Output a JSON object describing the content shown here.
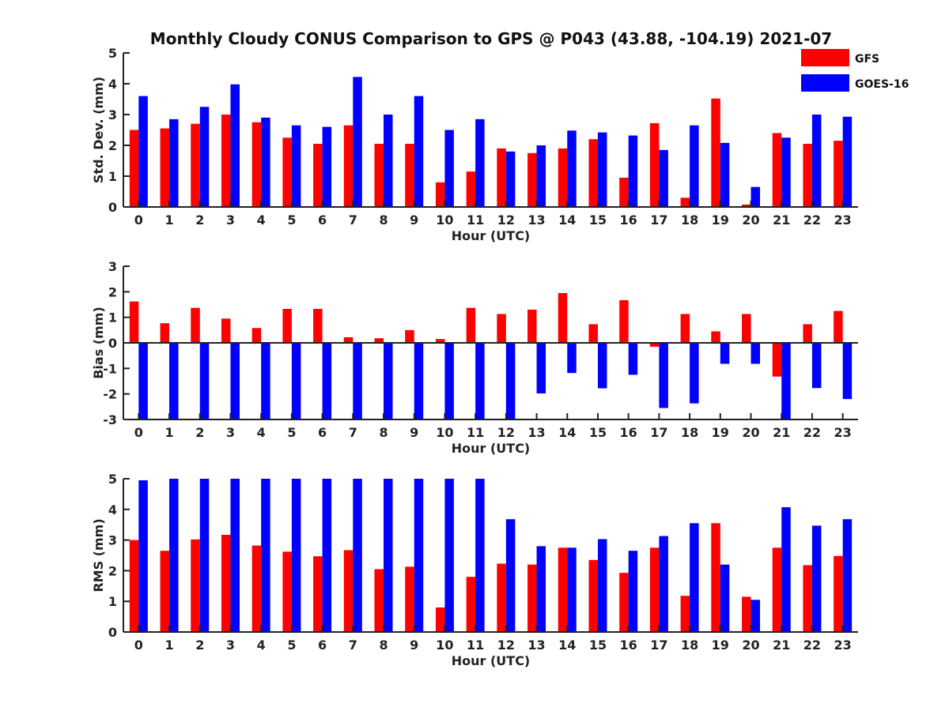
{
  "chart_data": {
    "title": "Monthly Cloudy CONUS Comparison to GPS @ P043 (43.88, -104.19) 2021-07",
    "legend": {
      "placement": "top-right",
      "items": [
        {
          "name": "GFS",
          "color": "#ff0000"
        },
        {
          "name": "GOES-16",
          "color": "#0000ff"
        }
      ]
    },
    "categories": [
      "0",
      "1",
      "2",
      "3",
      "4",
      "5",
      "6",
      "7",
      "8",
      "9",
      "10",
      "11",
      "12",
      "13",
      "14",
      "15",
      "16",
      "17",
      "18",
      "19",
      "20",
      "21",
      "22",
      "23"
    ],
    "panels": [
      {
        "type": "bar",
        "ylabel": "Std. Dev. (mm)",
        "xlabel": "Hour (UTC)",
        "ylim": [
          0,
          5
        ],
        "yticks": [
          "0",
          "1",
          "2",
          "3",
          "4",
          "5"
        ],
        "series": [
          {
            "name": "GFS",
            "color": "#ff0000",
            "values": [
              2.5,
              2.55,
              2.7,
              3.0,
              2.75,
              2.25,
              2.05,
              2.65,
              2.05,
              2.05,
              0.8,
              1.15,
              1.9,
              1.75,
              1.9,
              2.2,
              0.95,
              2.72,
              0.3,
              3.52,
              0.08,
              2.4,
              2.05,
              2.15
            ]
          },
          {
            "name": "GOES-16",
            "color": "#0000ff",
            "values": [
              3.6,
              2.85,
              3.25,
              3.98,
              2.9,
              2.65,
              2.6,
              4.22,
              3.0,
              3.6,
              2.5,
              2.85,
              1.8,
              2.0,
              2.48,
              2.42,
              2.32,
              1.85,
              2.65,
              2.08,
              0.65,
              2.25,
              3.0,
              2.93
            ]
          }
        ]
      },
      {
        "type": "bar",
        "ylabel": "Bias (mm)",
        "xlabel": "Hour (UTC)",
        "ylim": [
          -3,
          3
        ],
        "yticks": [
          "-3",
          "-2",
          "-1",
          "0",
          "1",
          "2",
          "3"
        ],
        "series": [
          {
            "name": "GFS",
            "color": "#ff0000",
            "values": [
              1.62,
              0.77,
              1.37,
              0.95,
              0.58,
              1.33,
              1.33,
              0.22,
              0.18,
              0.5,
              0.15,
              1.37,
              1.13,
              1.3,
              1.95,
              0.73,
              1.67,
              -0.15,
              1.13,
              0.45,
              1.13,
              -1.32,
              0.73,
              1.25
            ]
          },
          {
            "name": "GOES-16",
            "color": "#0000ff",
            "values": [
              -3.0,
              -3.0,
              -3.0,
              -3.0,
              -3.0,
              -3.0,
              -3.0,
              -3.0,
              -3.0,
              -3.0,
              -3.0,
              -3.0,
              -3.0,
              -1.98,
              -1.18,
              -1.78,
              -1.25,
              -2.55,
              -2.37,
              -0.82,
              -0.82,
              -3.0,
              -1.77,
              -2.2
            ]
          }
        ]
      },
      {
        "type": "bar",
        "ylabel": "RMS (mm)",
        "xlabel": "Hour (UTC)",
        "ylim": [
          0,
          5
        ],
        "yticks": [
          "0",
          "1",
          "2",
          "3",
          "4",
          "5"
        ],
        "series": [
          {
            "name": "GFS",
            "color": "#ff0000",
            "values": [
              3.0,
              2.65,
              3.02,
              3.17,
              2.82,
              2.62,
              2.47,
              2.67,
              2.05,
              2.13,
              0.8,
              1.8,
              2.23,
              2.2,
              2.75,
              2.35,
              1.93,
              2.75,
              1.18,
              3.55,
              1.15,
              2.75,
              2.18,
              2.48
            ]
          },
          {
            "name": "GOES-16",
            "color": "#0000ff",
            "values": [
              4.95,
              5.0,
              5.0,
              5.0,
              5.0,
              5.0,
              5.0,
              5.0,
              5.0,
              5.0,
              5.0,
              5.0,
              3.68,
              2.8,
              2.75,
              3.03,
              2.65,
              3.13,
              3.55,
              2.2,
              1.05,
              4.07,
              3.47,
              3.68
            ]
          }
        ]
      }
    ]
  }
}
